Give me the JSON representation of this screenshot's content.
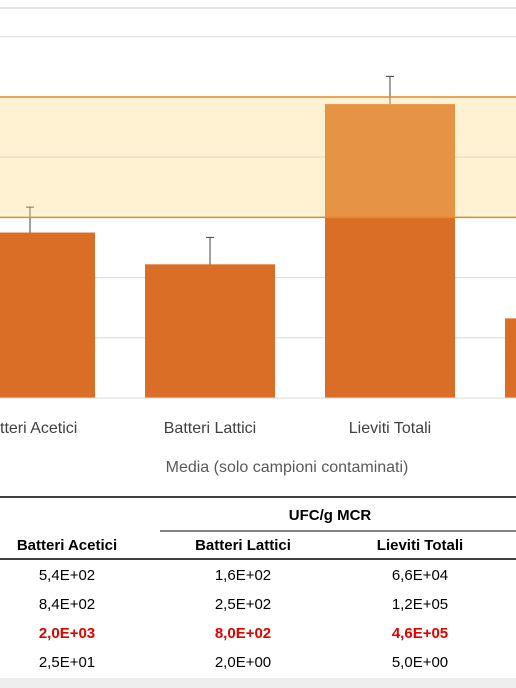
{
  "chart_data": {
    "type": "bar",
    "xlabel": "Media (solo campioni contaminati)",
    "categories": [
      "tteri Acetici",
      "Batteri Lattici",
      "Lieviti Totali",
      null
    ],
    "values": [
      560,
      166,
      76000,
      21
    ],
    "errors": [
      920,
      300,
      144000,
      null
    ],
    "color": "#db6e27",
    "log_scale": true,
    "ylim": [
      1,
      3000000
    ],
    "yticks": [
      1,
      10,
      100,
      1000,
      10000,
      100000,
      1000000
    ],
    "grid": true,
    "shaded_range": [
      1000,
      100000
    ]
  },
  "table": {
    "group_header": "UFC/g MCR",
    "columns": [
      "Batteri Acetici",
      "Batteri Lattici",
      "Lieviti Totali"
    ],
    "rows": [
      [
        "5,4E+02",
        "1,6E+02",
        "6,6E+04"
      ],
      [
        "8,4E+02",
        "2,5E+02",
        "1,2E+05"
      ],
      [
        "2,0E+03",
        "8,0E+02",
        "4,6E+05"
      ],
      [
        "2,5E+01",
        "2,0E+00",
        "5,0E+00"
      ]
    ],
    "highlight_row": 2,
    "highlight_color": "#e00000"
  }
}
